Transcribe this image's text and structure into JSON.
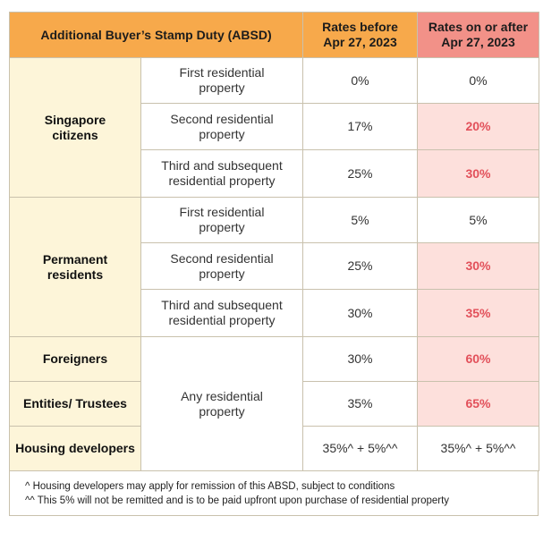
{
  "header": {
    "title": "Additional Buyer’s Stamp Duty (ABSD)",
    "before_label_1": "Rates before",
    "before_label_2": "Apr 27, 2023",
    "after_label_1": "Rates on or after",
    "after_label_2": "Apr 27, 2023"
  },
  "groups": {
    "singapore": {
      "label_1": "Singapore",
      "label_2": "citizens",
      "rows": [
        {
          "prop_1": "First residential",
          "prop_2": "property",
          "before": "0%",
          "after": "0%"
        },
        {
          "prop_1": "Second residential",
          "prop_2": "property",
          "before": "17%",
          "after": "20%"
        },
        {
          "prop_1": "Third and subsequent",
          "prop_2": "residential property",
          "before": "25%",
          "after": "30%"
        }
      ]
    },
    "permanent": {
      "label_1": "Permanent",
      "label_2": "residents",
      "rows": [
        {
          "prop_1": "First residential",
          "prop_2": "property",
          "before": "5%",
          "after": "5%"
        },
        {
          "prop_1": "Second residential",
          "prop_2": "property",
          "before": "25%",
          "after": "30%"
        },
        {
          "prop_1": "Third and subsequent",
          "prop_2": "residential property",
          "before": "30%",
          "after": "35%"
        }
      ]
    },
    "foreigners": {
      "label": "Foreigners",
      "before": "30%",
      "after": "60%"
    },
    "entities": {
      "label": "Entities/ Trustees",
      "before": "35%",
      "after": "65%"
    },
    "developers": {
      "label": "Housing developers",
      "before": "35%^ + 5%^^",
      "after": "35%^ + 5%^^"
    },
    "any_property_1": "Any residential",
    "any_property_2": "property"
  },
  "notes": {
    "note_1": "^ Housing developers may apply for remission of this ABSD, subject to conditions",
    "note_2": "^^ This 5% will not be remitted and is to be paid upfront upon purchase of residential property"
  },
  "colors": {
    "header_orange": "#f7a94b",
    "header_pink": "#f29188",
    "group_cream": "#fdf5d9",
    "highlight_pink": "#fde0dc",
    "highlight_text": "#e2505a"
  }
}
